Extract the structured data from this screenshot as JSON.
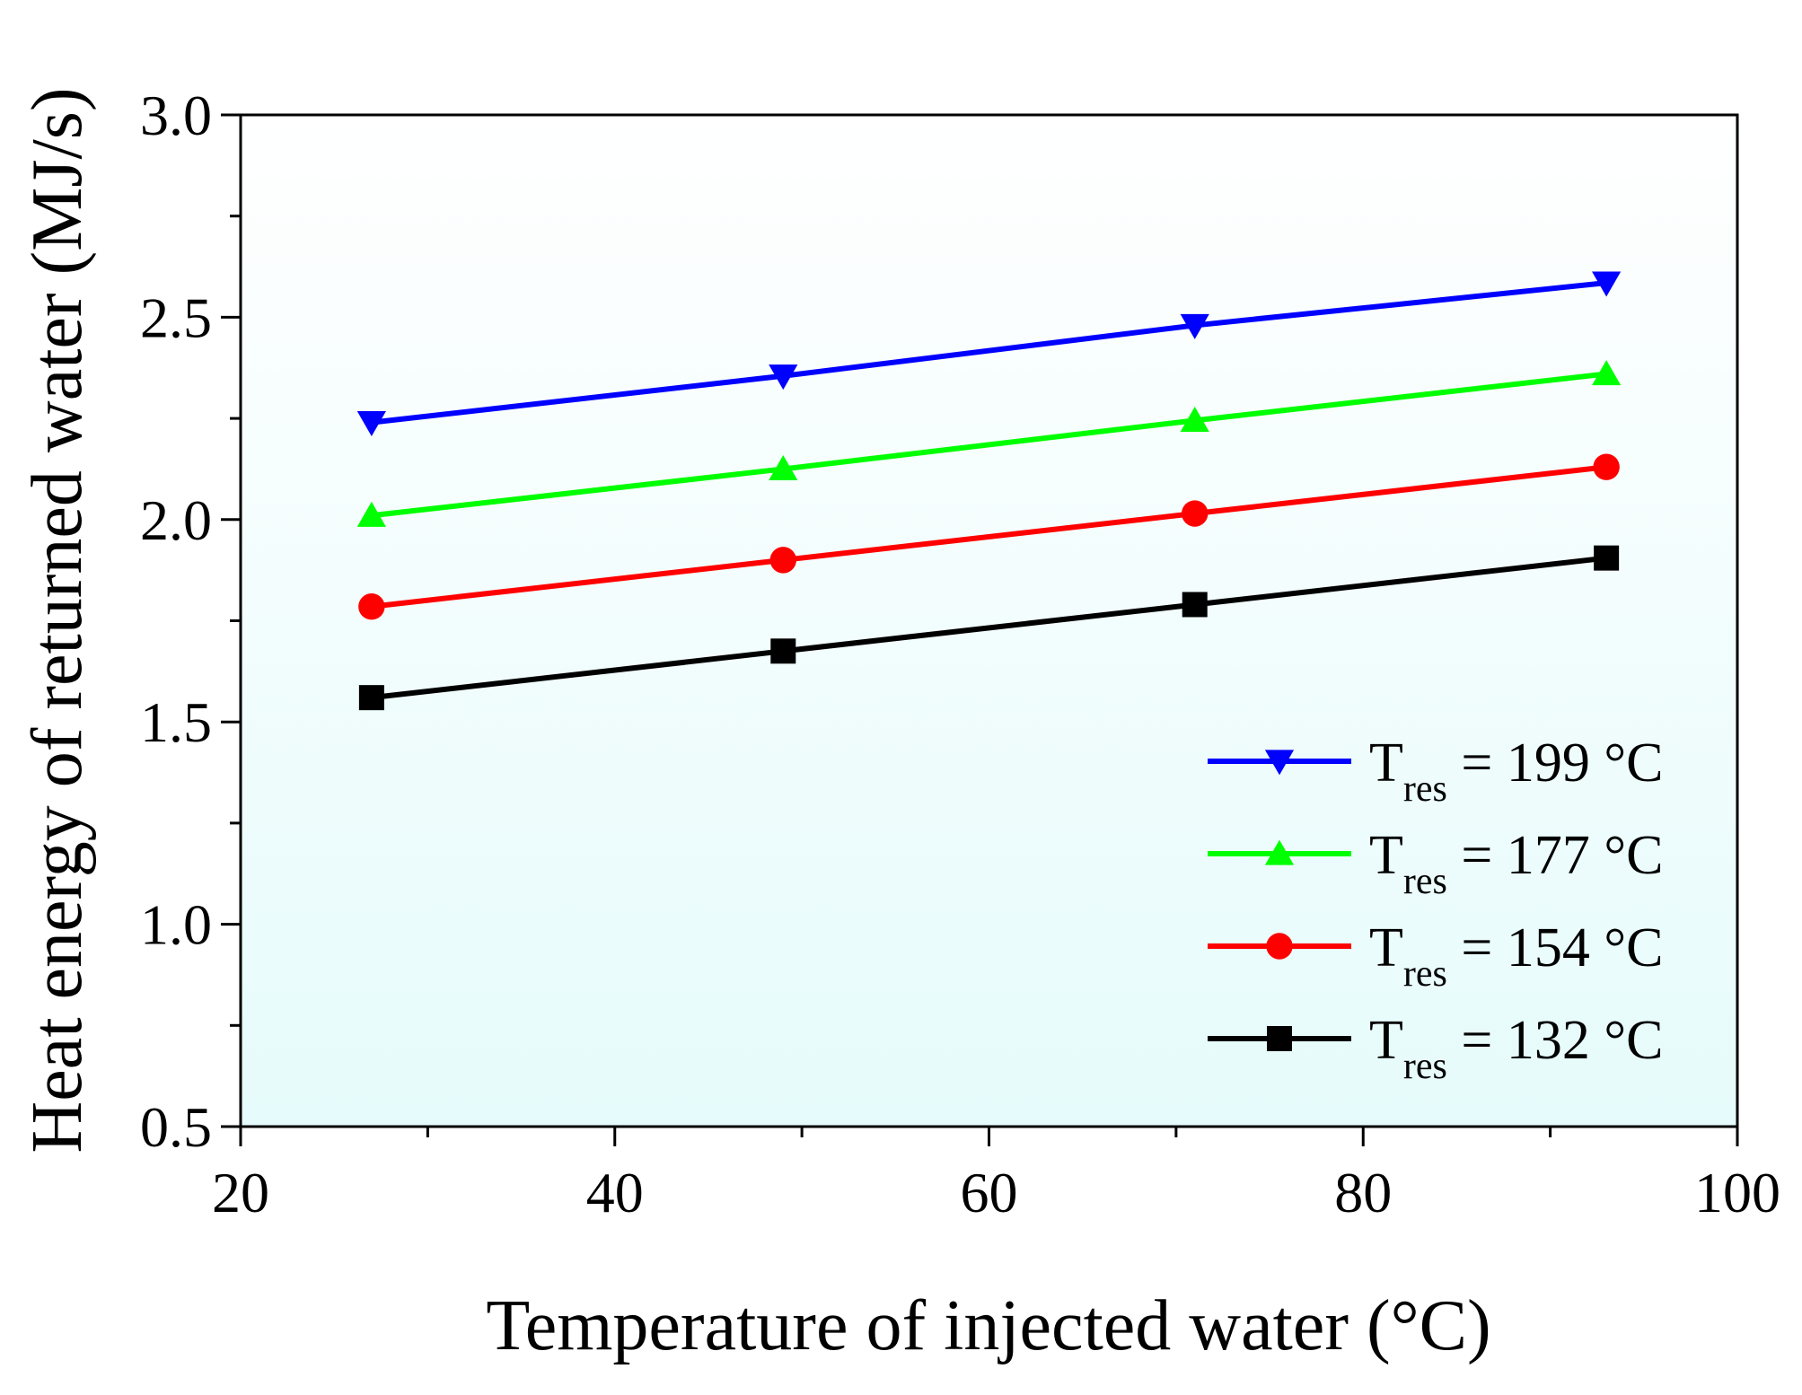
{
  "chart_data": {
    "type": "line",
    "title": "",
    "xlabel": "Temperature of injected water (°C)",
    "ylabel": "Heat energy of returned water (MJ/s)",
    "xlim": [
      20,
      100
    ],
    "ylim": [
      0.5,
      3.0
    ],
    "xticks": [
      20,
      40,
      60,
      80,
      100
    ],
    "xtick_labels": [
      "20",
      "40",
      "60",
      "80",
      "100"
    ],
    "yticks": [
      0.5,
      1.0,
      1.5,
      2.0,
      2.5,
      3.0
    ],
    "ytick_labels": [
      "0.5",
      "1.0",
      "1.5",
      "2.0",
      "2.5",
      "3.0"
    ],
    "x": [
      27,
      49,
      71,
      93
    ],
    "legend_position": "bottom-right",
    "background": "light cyan gradient",
    "series": [
      {
        "name": "Tres = 199 °C",
        "label_main": "T",
        "label_sub": "res",
        "label_rest": " = 199 °C",
        "color": "#0000ff",
        "marker": "triangle-down",
        "values": [
          2.24,
          2.355,
          2.48,
          2.585
        ]
      },
      {
        "name": "Tres = 177 °C",
        "label_main": "T",
        "label_sub": "res",
        "label_rest": " = 177 °C",
        "color": "#00ff00",
        "marker": "triangle-up",
        "values": [
          2.01,
          2.125,
          2.245,
          2.36
        ]
      },
      {
        "name": "Tres = 154 °C",
        "label_main": "T",
        "label_sub": "res",
        "label_rest": " = 154 °C",
        "color": "#ff0000",
        "marker": "circle",
        "values": [
          1.785,
          1.9,
          2.015,
          2.13
        ]
      },
      {
        "name": "Tres = 132 °C",
        "label_main": "T",
        "label_sub": "res",
        "label_rest": " = 132 °C",
        "color": "#000000",
        "marker": "square",
        "values": [
          1.56,
          1.675,
          1.79,
          1.905
        ]
      }
    ]
  }
}
